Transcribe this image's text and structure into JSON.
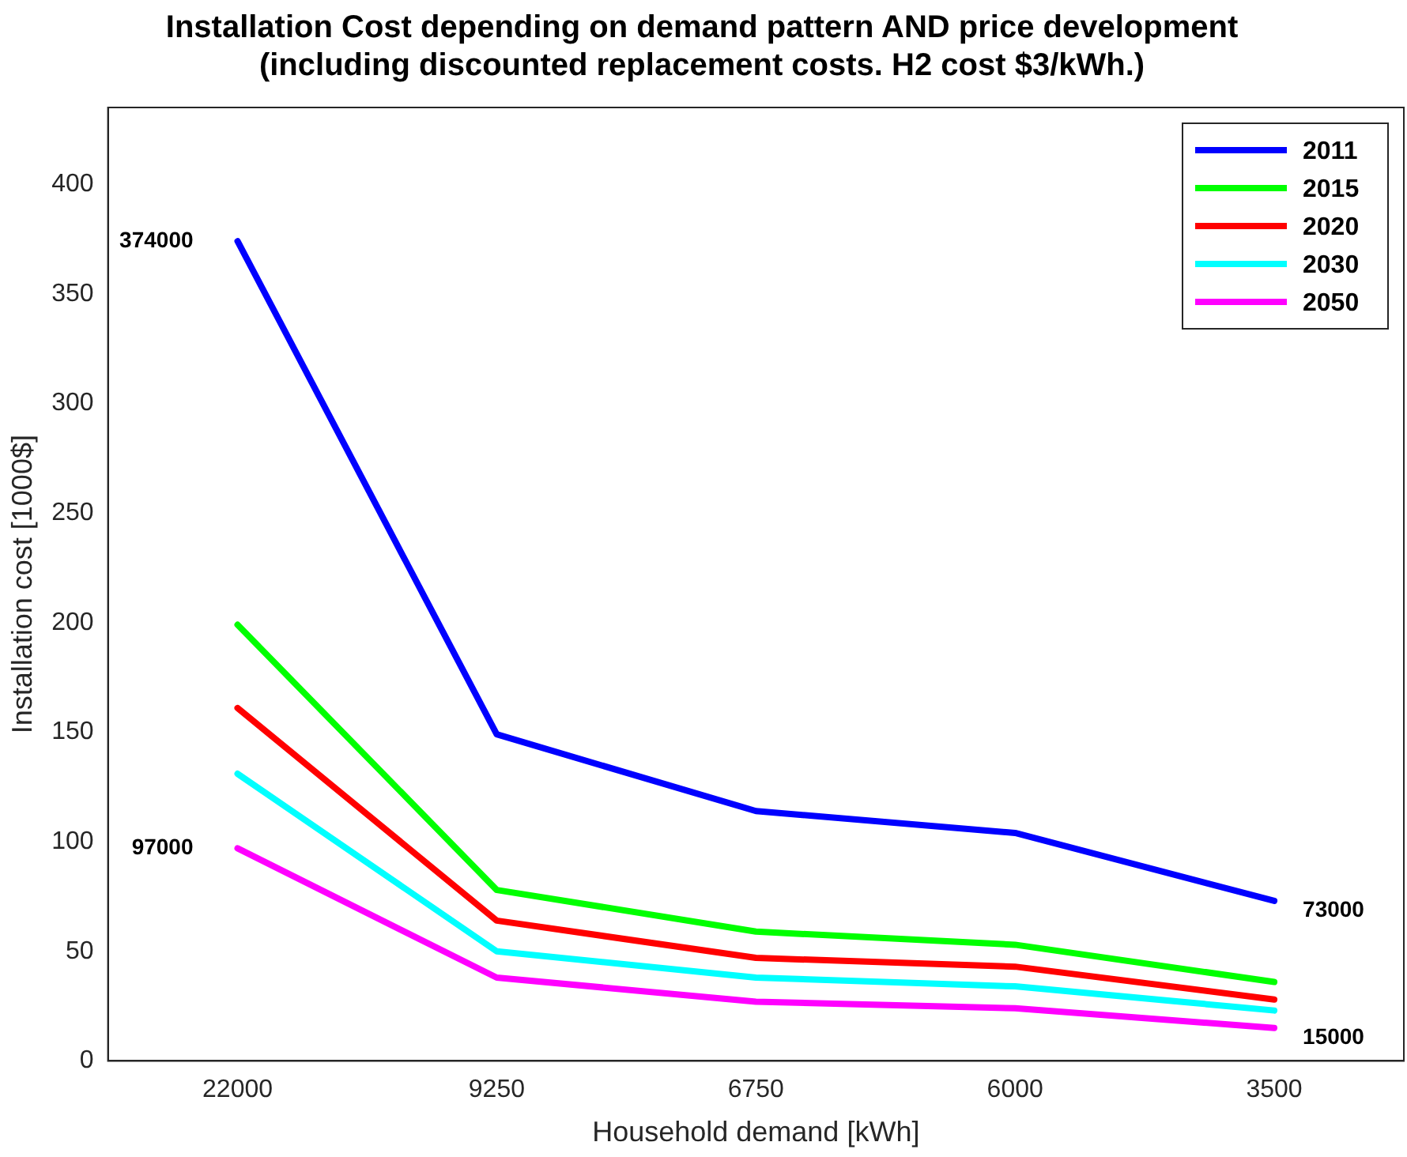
{
  "chart_data": {
    "type": "line",
    "title": [
      "Installation Cost depending on demand pattern AND price development",
      "(including discounted replacement costs. H2 cost $3/kWh.)"
    ],
    "xlabel": "Household demand [kWh]",
    "ylabel": "Installation cost [1000$]",
    "categories": [
      "22000",
      "9250",
      "6750",
      "6000",
      "3500"
    ],
    "series": [
      {
        "name": "2011",
        "color": "#0000ff",
        "values": [
          374,
          149,
          114,
          104,
          73
        ]
      },
      {
        "name": "2015",
        "color": "#00ff00",
        "values": [
          199,
          78,
          59,
          53,
          36
        ]
      },
      {
        "name": "2020",
        "color": "#ff0000",
        "values": [
          161,
          64,
          47,
          43,
          28
        ]
      },
      {
        "name": "2030",
        "color": "#00ffff",
        "values": [
          131,
          50,
          38,
          34,
          23
        ]
      },
      {
        "name": "2050",
        "color": "#ff00ff",
        "values": [
          97,
          38,
          27,
          24,
          15
        ]
      }
    ],
    "ylim": [
      0,
      435
    ],
    "yticks": [
      0,
      50,
      100,
      150,
      200,
      250,
      300,
      350,
      400
    ],
    "grid": false,
    "legend": "top right",
    "marker": "none",
    "line_style": "solid",
    "annotations": [
      {
        "text": "374000",
        "x": "22000",
        "y": 374
      },
      {
        "text": "97000",
        "x": "22000",
        "y": 97
      },
      {
        "text": "73000",
        "x": "3500",
        "y": 73
      },
      {
        "text": "15000",
        "x": "3500",
        "y": 15
      }
    ]
  }
}
